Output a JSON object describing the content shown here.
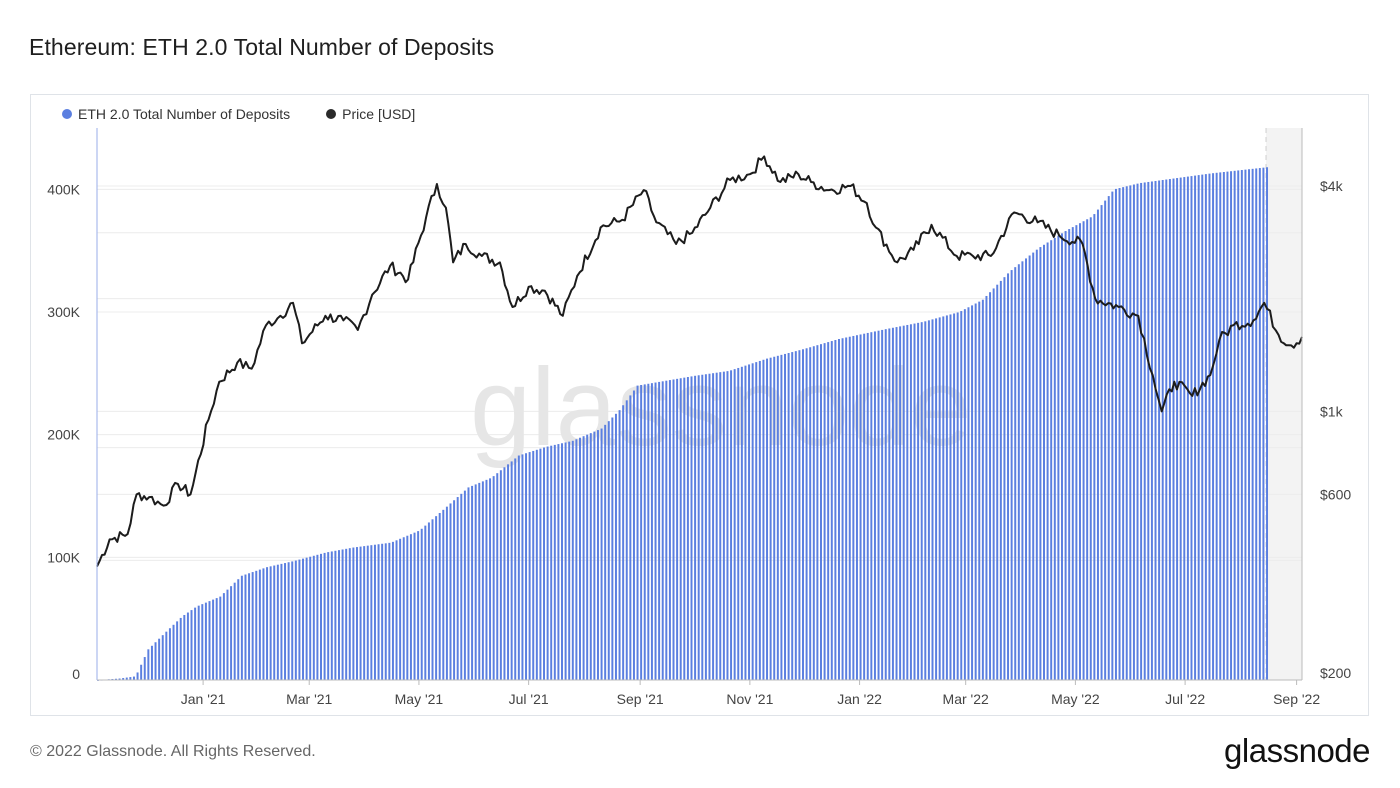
{
  "title": "Ethereum: ETH 2.0 Total Number of Deposits",
  "legend": [
    {
      "label": "ETH 2.0 Total Number of Deposits",
      "color": "#5b7fe0"
    },
    {
      "label": "Price [USD]",
      "color": "#2a2a2a"
    }
  ],
  "footer": "© 2022 Glassnode. All Rights Reserved.",
  "brand": "glassnode",
  "watermark": "glassnode",
  "colors": {
    "bars": "#5b7fe0",
    "price": "#1c1c1c",
    "grid": "#ececec",
    "forecast_shade": "#f3f3f3"
  },
  "chart_data": {
    "type": "bar+line",
    "x_ticks": [
      "Jan '21",
      "Mar '21",
      "May '21",
      "Jul '21",
      "Sep '21",
      "Nov '21",
      "Jan '22",
      "Mar '22",
      "May '22",
      "Jul '22",
      "Sep '22"
    ],
    "left_axis": {
      "ticks": [
        "0",
        "100K",
        "200K",
        "300K",
        "400K"
      ],
      "ylim": [
        0,
        450000
      ]
    },
    "right_axis": {
      "ticks": [
        "$200",
        "$600",
        "$1k",
        "$4k"
      ],
      "scale": "log"
    },
    "x_start": "2020-11-03",
    "x_end": "2022-09-04",
    "data_end": "2022-08-15",
    "deposits_series": {
      "name": "ETH 2.0 Total Number of Deposits",
      "points": [
        [
          "2020-11-03",
          0
        ],
        [
          "2020-11-15",
          1200
        ],
        [
          "2020-11-24",
          3000
        ],
        [
          "2020-12-01",
          25000
        ],
        [
          "2020-12-10",
          38000
        ],
        [
          "2020-12-20",
          52000
        ],
        [
          "2020-12-28",
          60000
        ],
        [
          "2021-01-10",
          68000
        ],
        [
          "2021-01-22",
          85000
        ],
        [
          "2021-02-05",
          92000
        ],
        [
          "2021-02-20",
          97000
        ],
        [
          "2021-03-10",
          104000
        ],
        [
          "2021-03-25",
          108000
        ],
        [
          "2021-04-15",
          112000
        ],
        [
          "2021-05-01",
          122000
        ],
        [
          "2021-05-15",
          140000
        ],
        [
          "2021-05-28",
          157000
        ],
        [
          "2021-06-10",
          165000
        ],
        [
          "2021-06-25",
          183000
        ],
        [
          "2021-07-10",
          190000
        ],
        [
          "2021-07-25",
          195000
        ],
        [
          "2021-08-10",
          205000
        ],
        [
          "2021-08-20",
          220000
        ],
        [
          "2021-08-30",
          240000
        ],
        [
          "2021-09-15",
          244000
        ],
        [
          "2021-10-01",
          248000
        ],
        [
          "2021-10-20",
          252000
        ],
        [
          "2021-11-10",
          262000
        ],
        [
          "2021-12-01",
          270000
        ],
        [
          "2021-12-20",
          278000
        ],
        [
          "2022-01-15",
          286000
        ],
        [
          "2022-02-05",
          292000
        ],
        [
          "2022-02-25",
          300000
        ],
        [
          "2022-03-10",
          310000
        ],
        [
          "2022-03-25",
          333000
        ],
        [
          "2022-04-10",
          352000
        ],
        [
          "2022-04-25",
          366000
        ],
        [
          "2022-05-10",
          378000
        ],
        [
          "2022-05-22",
          400000
        ],
        [
          "2022-06-05",
          405000
        ],
        [
          "2022-06-25",
          409000
        ],
        [
          "2022-07-15",
          413000
        ],
        [
          "2022-08-15",
          418000
        ]
      ]
    },
    "price_series": {
      "name": "Price [USD]",
      "points": [
        [
          "2020-11-03",
          385
        ],
        [
          "2020-11-10",
          455
        ],
        [
          "2020-11-20",
          470
        ],
        [
          "2020-11-25",
          600
        ],
        [
          "2020-12-02",
          590
        ],
        [
          "2020-12-10",
          560
        ],
        [
          "2020-12-18",
          640
        ],
        [
          "2020-12-25",
          600
        ],
        [
          "2021-01-04",
          950
        ],
        [
          "2021-01-10",
          1200
        ],
        [
          "2021-01-20",
          1350
        ],
        [
          "2021-01-28",
          1300
        ],
        [
          "2021-02-05",
          1700
        ],
        [
          "2021-02-13",
          1800
        ],
        [
          "2021-02-20",
          1950
        ],
        [
          "2021-02-25",
          1520
        ],
        [
          "2021-03-10",
          1800
        ],
        [
          "2021-03-20",
          1750
        ],
        [
          "2021-03-28",
          1650
        ],
        [
          "2021-04-05",
          2050
        ],
        [
          "2021-04-15",
          2450
        ],
        [
          "2021-04-25",
          2250
        ],
        [
          "2021-05-05",
          3300
        ],
        [
          "2021-05-11",
          4050
        ],
        [
          "2021-05-16",
          3500
        ],
        [
          "2021-05-20",
          2500
        ],
        [
          "2021-05-27",
          2800
        ],
        [
          "2021-06-05",
          2600
        ],
        [
          "2021-06-15",
          2500
        ],
        [
          "2021-06-22",
          1900
        ],
        [
          "2021-07-01",
          2150
        ],
        [
          "2021-07-10",
          2100
        ],
        [
          "2021-07-20",
          1800
        ],
        [
          "2021-07-28",
          2300
        ],
        [
          "2021-08-10",
          3100
        ],
        [
          "2021-08-22",
          3250
        ],
        [
          "2021-09-03",
          3900
        ],
        [
          "2021-09-10",
          3200
        ],
        [
          "2021-09-21",
          2800
        ],
        [
          "2021-09-30",
          3000
        ],
        [
          "2021-10-10",
          3500
        ],
        [
          "2021-10-21",
          4150
        ],
        [
          "2021-11-01",
          4300
        ],
        [
          "2021-11-09",
          4800
        ],
        [
          "2021-11-18",
          4100
        ],
        [
          "2021-11-28",
          4300
        ],
        [
          "2021-12-05",
          4100
        ],
        [
          "2021-12-15",
          3900
        ],
        [
          "2021-12-27",
          4000
        ],
        [
          "2022-01-05",
          3600
        ],
        [
          "2022-01-10",
          3100
        ],
        [
          "2022-01-22",
          2500
        ],
        [
          "2022-01-31",
          2700
        ],
        [
          "2022-02-10",
          3150
        ],
        [
          "2022-02-24",
          2600
        ],
        [
          "2022-03-05",
          2600
        ],
        [
          "2022-03-15",
          2600
        ],
        [
          "2022-03-28",
          3400
        ],
        [
          "2022-04-10",
          3200
        ],
        [
          "2022-04-22",
          2950
        ],
        [
          "2022-05-05",
          2800
        ],
        [
          "2022-05-12",
          2000
        ],
        [
          "2022-05-25",
          1900
        ],
        [
          "2022-06-05",
          1800
        ],
        [
          "2022-06-13",
          1250
        ],
        [
          "2022-06-18",
          1000
        ],
        [
          "2022-06-25",
          1200
        ],
        [
          "2022-07-05",
          1100
        ],
        [
          "2022-07-15",
          1250
        ],
        [
          "2022-07-20",
          1550
        ],
        [
          "2022-07-28",
          1700
        ],
        [
          "2022-08-08",
          1750
        ],
        [
          "2022-08-14",
          1950
        ],
        [
          "2022-08-22",
          1600
        ],
        [
          "2022-08-29",
          1500
        ],
        [
          "2022-09-04",
          1580
        ]
      ]
    }
  }
}
